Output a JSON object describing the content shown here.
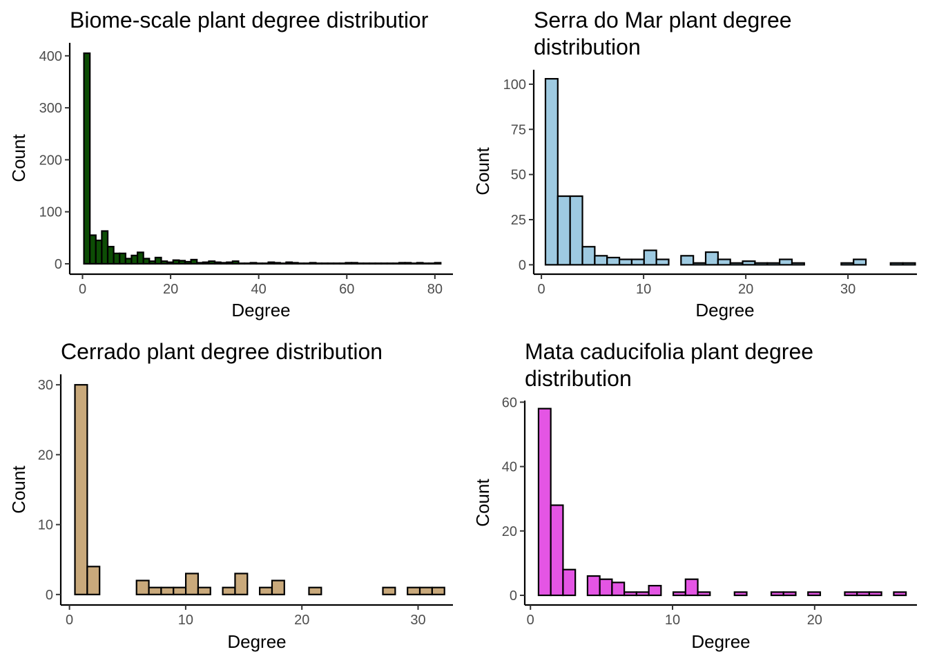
{
  "chart_data": [
    {
      "type": "bar",
      "title_lines": [
        "Biome-scale plant degree distributior"
      ],
      "xlabel": "Degree",
      "ylabel": "Count",
      "xlim": [
        -2.9,
        84.1
      ],
      "ylim": [
        -20,
        425
      ],
      "xticks": [
        0,
        20,
        40,
        60,
        80
      ],
      "yticks": [
        0,
        100,
        200,
        300,
        400
      ],
      "bin_width": 1.35,
      "fill": "#0d4d05",
      "bins": [
        [
          1.0,
          405
        ],
        [
          2.35,
          55
        ],
        [
          3.7,
          45
        ],
        [
          5.05,
          63
        ],
        [
          6.4,
          33
        ],
        [
          7.75,
          20
        ],
        [
          9.1,
          20
        ],
        [
          10.45,
          10
        ],
        [
          11.8,
          16
        ],
        [
          13.15,
          22
        ],
        [
          14.5,
          10
        ],
        [
          15.85,
          5
        ],
        [
          17.2,
          12
        ],
        [
          18.55,
          5
        ],
        [
          19.9,
          3
        ],
        [
          21.25,
          7
        ],
        [
          22.6,
          6
        ],
        [
          23.95,
          4
        ],
        [
          25.3,
          8
        ],
        [
          26.65,
          2
        ],
        [
          28.0,
          3
        ],
        [
          29.35,
          5
        ],
        [
          30.7,
          3
        ],
        [
          32.05,
          2
        ],
        [
          33.4,
          3
        ],
        [
          34.75,
          5
        ],
        [
          36.1,
          1
        ],
        [
          37.45,
          1
        ],
        [
          38.8,
          2
        ],
        [
          40.15,
          1
        ],
        [
          41.5,
          1
        ],
        [
          42.85,
          3
        ],
        [
          44.2,
          2
        ],
        [
          45.55,
          1
        ],
        [
          46.9,
          3
        ],
        [
          48.25,
          2
        ],
        [
          49.6,
          1
        ],
        [
          50.95,
          1
        ],
        [
          52.3,
          2
        ],
        [
          53.65,
          1
        ],
        [
          55.0,
          1
        ],
        [
          56.35,
          1
        ],
        [
          57.7,
          1
        ],
        [
          59.05,
          1
        ],
        [
          60.4,
          2
        ],
        [
          61.75,
          2
        ],
        [
          63.1,
          1
        ],
        [
          64.45,
          1
        ],
        [
          65.8,
          1
        ],
        [
          67.15,
          1
        ],
        [
          68.5,
          1
        ],
        [
          69.85,
          1
        ],
        [
          71.2,
          1
        ],
        [
          72.55,
          2
        ],
        [
          73.9,
          2
        ],
        [
          75.25,
          1
        ],
        [
          76.6,
          2
        ],
        [
          77.95,
          1
        ],
        [
          79.3,
          1
        ],
        [
          80.65,
          2
        ]
      ]
    },
    {
      "type": "bar",
      "title_lines": [
        "Serra do Mar plant degree",
        "distribution"
      ],
      "xlabel": "Degree",
      "ylabel": "Count",
      "xlim": [
        -0.75,
        36.75
      ],
      "ylim": [
        -5.2,
        108
      ],
      "xticks": [
        0,
        10,
        20,
        30
      ],
      "yticks": [
        0,
        25,
        50,
        75,
        100
      ],
      "bin_width": 1.206,
      "fill": "#9ecae1",
      "bins": [
        [
          1.0,
          103
        ],
        [
          2.206,
          38
        ],
        [
          3.412,
          38
        ],
        [
          4.618,
          10
        ],
        [
          5.824,
          5
        ],
        [
          7.03,
          4
        ],
        [
          8.236,
          3
        ],
        [
          9.442,
          3
        ],
        [
          10.648,
          8
        ],
        [
          11.854,
          3
        ],
        [
          13.06,
          0
        ],
        [
          14.266,
          5
        ],
        [
          15.472,
          1
        ],
        [
          16.678,
          7
        ],
        [
          17.884,
          3
        ],
        [
          19.09,
          1
        ],
        [
          20.296,
          2
        ],
        [
          21.502,
          1
        ],
        [
          22.708,
          1
        ],
        [
          23.914,
          3
        ],
        [
          25.12,
          1
        ],
        [
          26.326,
          0
        ],
        [
          27.532,
          0
        ],
        [
          28.738,
          0
        ],
        [
          29.944,
          1
        ],
        [
          31.15,
          3
        ],
        [
          32.356,
          0
        ],
        [
          33.562,
          0
        ],
        [
          34.768,
          1
        ],
        [
          35.974,
          1
        ]
      ]
    },
    {
      "type": "bar",
      "title_lines": [
        "Cerrado plant degree distribution"
      ],
      "xlabel": "Degree",
      "ylabel": "Count",
      "xlim": [
        -0.75,
        33.0
      ],
      "ylim": [
        -1.5,
        31.5
      ],
      "xticks": [
        0,
        10,
        20,
        30
      ],
      "yticks": [
        0,
        10,
        20,
        30
      ],
      "bin_width": 1.06,
      "fill": "#c9a97b",
      "bins": [
        [
          1.0,
          30
        ],
        [
          2.06,
          4
        ],
        [
          3.12,
          0
        ],
        [
          4.18,
          0
        ],
        [
          5.24,
          0
        ],
        [
          6.3,
          2
        ],
        [
          7.36,
          1
        ],
        [
          8.42,
          1
        ],
        [
          9.48,
          1
        ],
        [
          10.54,
          3
        ],
        [
          11.6,
          1
        ],
        [
          12.66,
          0
        ],
        [
          13.72,
          1
        ],
        [
          14.78,
          3
        ],
        [
          15.84,
          0
        ],
        [
          16.9,
          1
        ],
        [
          17.96,
          2
        ],
        [
          19.02,
          0
        ],
        [
          20.08,
          0
        ],
        [
          21.14,
          1
        ],
        [
          22.2,
          0
        ],
        [
          23.26,
          0
        ],
        [
          24.32,
          0
        ],
        [
          25.38,
          0
        ],
        [
          26.44,
          0
        ],
        [
          27.5,
          1
        ],
        [
          28.56,
          0
        ],
        [
          29.62,
          1
        ],
        [
          30.68,
          1
        ],
        [
          31.74,
          1
        ]
      ]
    },
    {
      "type": "bar",
      "title_lines": [
        "Mata caducifolia plant degree",
        "distribution"
      ],
      "xlabel": "Degree",
      "ylabel": "Count",
      "xlim": [
        -0.4,
        27.2
      ],
      "ylim": [
        -3,
        60.5
      ],
      "xticks": [
        0,
        10,
        20
      ],
      "yticks": [
        0,
        20,
        40,
        60
      ],
      "bin_width": 0.862,
      "fill": "#e455e4",
      "bins": [
        [
          1.0,
          58
        ],
        [
          1.862,
          28
        ],
        [
          2.724,
          8
        ],
        [
          3.586,
          0
        ],
        [
          4.448,
          6
        ],
        [
          5.31,
          5
        ],
        [
          6.172,
          4
        ],
        [
          7.034,
          1
        ],
        [
          7.896,
          1
        ],
        [
          8.758,
          3
        ],
        [
          9.62,
          0
        ],
        [
          10.482,
          1
        ],
        [
          11.344,
          5
        ],
        [
          12.206,
          1
        ],
        [
          13.068,
          0
        ],
        [
          13.93,
          0
        ],
        [
          14.792,
          1
        ],
        [
          15.654,
          0
        ],
        [
          16.516,
          0
        ],
        [
          17.378,
          1
        ],
        [
          18.24,
          1
        ],
        [
          19.102,
          0
        ],
        [
          19.964,
          1
        ],
        [
          20.826,
          0
        ],
        [
          21.688,
          0
        ],
        [
          22.55,
          1
        ],
        [
          23.412,
          1
        ],
        [
          24.274,
          1
        ],
        [
          25.136,
          0
        ],
        [
          25.998,
          1
        ]
      ]
    }
  ]
}
